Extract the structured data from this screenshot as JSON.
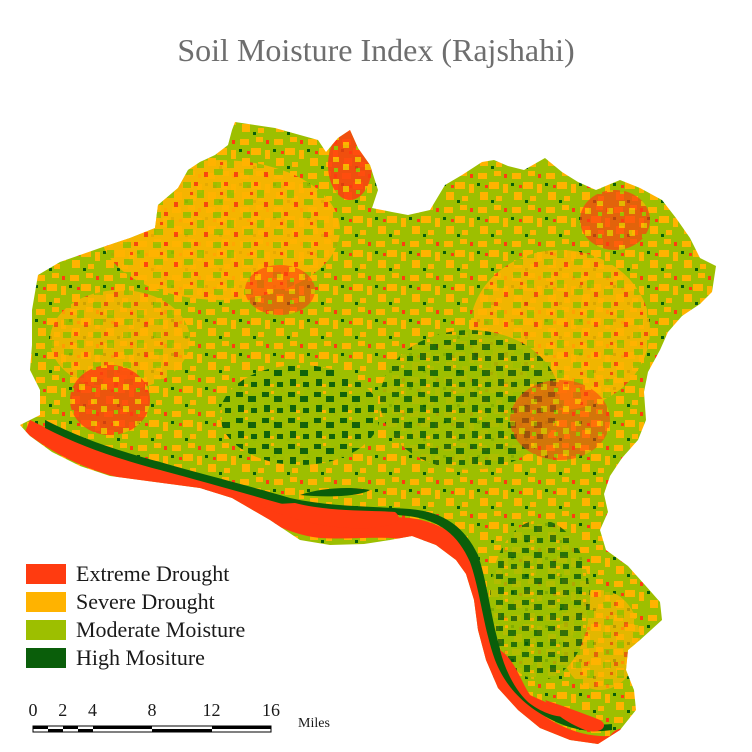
{
  "title": "Soil Moisture Index (Rajshahi)",
  "legend": {
    "items": [
      {
        "label": "Extreme Drought",
        "color": "#ff3b10"
      },
      {
        "label": "Severe Drought",
        "color": "#ffb300"
      },
      {
        "label": "Moderate Moisture",
        "color": "#9dbf00"
      },
      {
        "label": "High Mositure",
        "color": "#0a5e0a"
      }
    ]
  },
  "scale_bar": {
    "ticks": [
      "0",
      "2",
      "4",
      "8",
      "12",
      "16"
    ],
    "tick_values": [
      0,
      2,
      4,
      8,
      12,
      16
    ],
    "unit": "Miles"
  }
}
